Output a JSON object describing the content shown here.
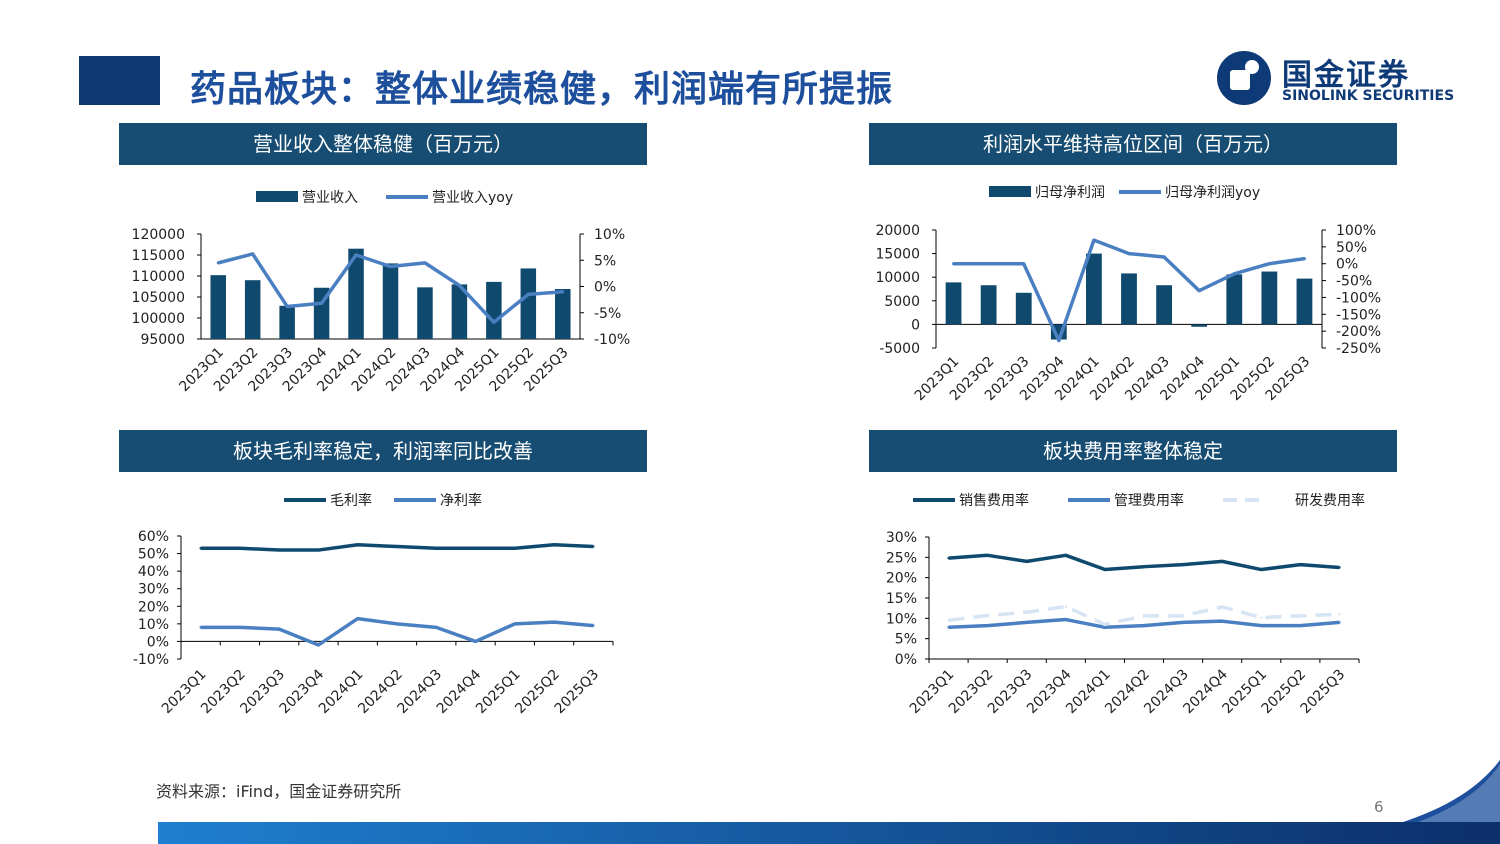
{
  "title": "药品板块：整体业绩稳健，利润端有所提振",
  "logo": {
    "cn": "国金证券",
    "en": "SINOLINK SECURITIES"
  },
  "source": "资料来源：iFind，国金证券研究所",
  "page_number": "6",
  "colors": {
    "dark": "#0f4a6e",
    "mid": "#4a7fc1",
    "light": "#d6e4f3",
    "header": "#174d72",
    "title": "#1d4f9c"
  },
  "chart_data": [
    {
      "id": "revenue",
      "type": "bar+line",
      "title": "营业收入整体稳健（百万元）",
      "categories": [
        "2023Q1",
        "2023Q2",
        "2023Q3",
        "2023Q4",
        "2024Q1",
        "2024Q2",
        "2024Q3",
        "2024Q4",
        "2025Q1",
        "2025Q2",
        "2025Q3"
      ],
      "bar_series": {
        "name": "营业收入",
        "values": [
          110200,
          109000,
          102900,
          107200,
          116500,
          113000,
          107300,
          108000,
          108600,
          111800,
          106900
        ]
      },
      "line_series": {
        "name": "营业收入yoy",
        "values": [
          4.5,
          6.2,
          -3.8,
          -3.2,
          6.0,
          3.8,
          4.5,
          0.2,
          -6.8,
          -1.5,
          -1.0
        ]
      },
      "y_left": {
        "min": 95000,
        "max": 120000,
        "ticks": [
          "120000",
          "115000",
          "110000",
          "105000",
          "100000",
          "95000"
        ]
      },
      "y_right": {
        "min": -10,
        "max": 10,
        "ticks": [
          "10%",
          "5%",
          "0%",
          "-5%",
          "-10%"
        ]
      }
    },
    {
      "id": "profit",
      "type": "bar+line",
      "title": "利润水平维持高位区间（百万元）",
      "categories": [
        "2023Q1",
        "2023Q2",
        "2023Q3",
        "2023Q4",
        "2024Q1",
        "2024Q2",
        "2024Q3",
        "2024Q4",
        "2025Q1",
        "2025Q2",
        "2025Q3"
      ],
      "bar_series": {
        "name": "归母净利润",
        "values": [
          8900,
          8300,
          6700,
          -3200,
          15000,
          10800,
          8300,
          -500,
          10600,
          11200,
          9700
        ]
      },
      "line_series": {
        "name": "归母净利润yoy",
        "values": [
          0,
          0,
          0,
          -228,
          70,
          30,
          20,
          -80,
          -30,
          0,
          15
        ]
      },
      "y_left": {
        "min": -5000,
        "max": 20000,
        "ticks": [
          "20000",
          "15000",
          "10000",
          "5000",
          "0",
          "-5000"
        ]
      },
      "y_right": {
        "min": -250,
        "max": 100,
        "ticks": [
          "100%",
          "50%",
          "0%",
          "-50%",
          "-100%",
          "-150%",
          "-200%",
          "-250%"
        ]
      }
    },
    {
      "id": "margin",
      "type": "line",
      "title": "板块毛利率稳定，利润率同比改善",
      "categories": [
        "2023Q1",
        "2023Q2",
        "2023Q3",
        "2023Q4",
        "2024Q1",
        "2024Q2",
        "2024Q3",
        "2024Q4",
        "2025Q1",
        "2025Q2",
        "2025Q3"
      ],
      "series": [
        {
          "name": "毛利率",
          "values": [
            53,
            53,
            52,
            52,
            55,
            54,
            53,
            53,
            53,
            55,
            54
          ],
          "color": "#0f4a6e",
          "dash": false
        },
        {
          "name": "净利率",
          "values": [
            8,
            8,
            7,
            -2,
            13,
            10,
            8,
            0,
            10,
            11,
            9
          ],
          "color": "#4a7fc1",
          "dash": false
        }
      ],
      "y": {
        "min": -10,
        "max": 60,
        "ticks": [
          "60%",
          "50%",
          "40%",
          "30%",
          "20%",
          "10%",
          "0%",
          "-10%"
        ]
      }
    },
    {
      "id": "expense",
      "type": "line",
      "title": "板块费用率整体稳定",
      "categories": [
        "2023Q1",
        "2023Q2",
        "2023Q3",
        "2023Q4",
        "2024Q1",
        "2024Q2",
        "2024Q3",
        "2024Q4",
        "2025Q1",
        "2025Q2",
        "2025Q3"
      ],
      "series": [
        {
          "name": "销售费用率",
          "values": [
            24.8,
            25.5,
            24.0,
            25.5,
            22.0,
            22.7,
            23.2,
            24.0,
            22.0,
            23.2,
            22.5
          ],
          "color": "#0f4a6e",
          "dash": false
        },
        {
          "name": "管理费用率",
          "values": [
            7.8,
            8.2,
            9.0,
            9.7,
            7.8,
            8.2,
            9.0,
            9.3,
            8.2,
            8.2,
            9.0
          ],
          "color": "#4a7fc1",
          "dash": false
        },
        {
          "name": "研发费用率",
          "values": [
            9.5,
            10.7,
            11.5,
            12.9,
            8.5,
            10.6,
            10.6,
            12.8,
            10.2,
            10.6,
            11.0
          ],
          "color": "#d6e4f3",
          "dash": true
        }
      ],
      "y": {
        "min": 0,
        "max": 30,
        "ticks": [
          "30%",
          "25%",
          "20%",
          "15%",
          "10%",
          "5%",
          "0%"
        ]
      }
    }
  ]
}
